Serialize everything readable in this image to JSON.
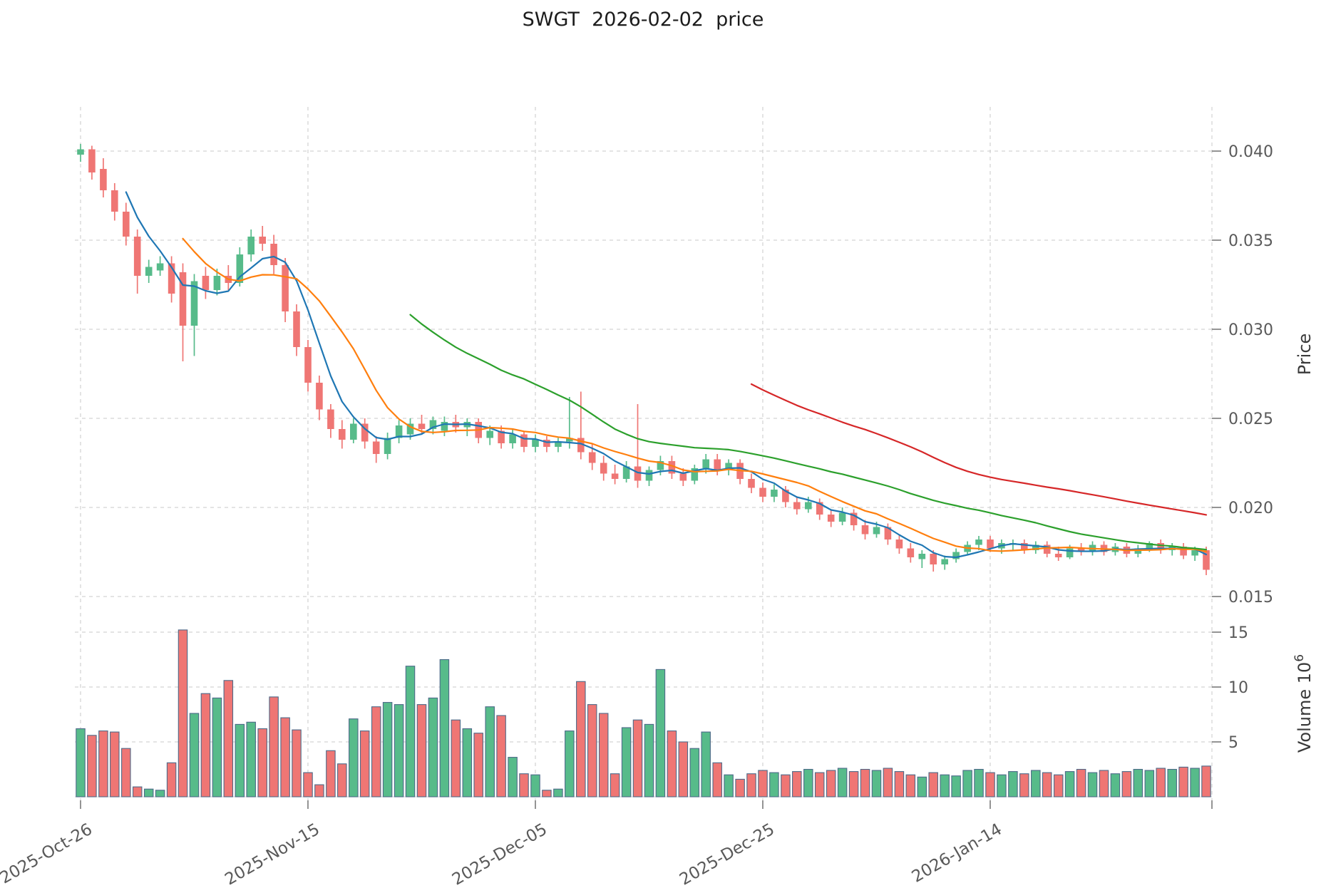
{
  "title": "SWGT  2026-02-02  price",
  "chart_data": {
    "type": "candlestick",
    "title": "SWGT  2026-02-02  price",
    "ylabel_price": "Price",
    "ylabel_volume_text": "Volume  10",
    "ylabel_volume_exp": "6",
    "legend_position": "none",
    "grid": true,
    "price_axis": {
      "min": 0.015,
      "max": 0.0425,
      "tick_values": [
        0.015,
        0.02,
        0.025,
        0.03,
        0.035,
        0.04
      ],
      "tick_labels": [
        "0.015",
        "0.020",
        "0.025",
        "0.030",
        "0.035",
        "0.040"
      ]
    },
    "volume_axis": {
      "unit_millions": true,
      "tick_values": [
        5,
        10,
        15
      ],
      "tick_labels": [
        "5",
        "10",
        "15"
      ]
    },
    "x_ticks": [
      {
        "index": 0,
        "label": "2025-Oct-26"
      },
      {
        "index": 20,
        "label": "2025-Nov-15"
      },
      {
        "index": 40,
        "label": "2025-Dec-05"
      },
      {
        "index": 60,
        "label": "2025-Dec-25"
      },
      {
        "index": 80,
        "label": "2026-Jan-14"
      },
      {
        "index": 100,
        "label": ""
      }
    ],
    "moving_averages": [
      {
        "window": 5,
        "color": "#1f77b4"
      },
      {
        "window": 10,
        "color": "#ff7f0e"
      },
      {
        "window": 30,
        "color": "#2ca02c"
      },
      {
        "window": 60,
        "color": "#d62728"
      }
    ],
    "colors": {
      "up": "#57bb8a",
      "down": "#ef7674",
      "volume_edge": "#4d6a89",
      "grid": "#c9c9c9",
      "tick_text": "#595959",
      "title_text": "#1c1c1c"
    },
    "candles_format": [
      "open",
      "high",
      "low",
      "close",
      "volume_millions"
    ],
    "candles": [
      [
        0.0398,
        0.0404,
        0.0394,
        0.0401,
        6.2
      ],
      [
        0.0401,
        0.0403,
        0.0384,
        0.0388,
        5.6
      ],
      [
        0.039,
        0.0396,
        0.0374,
        0.0378,
        6.0
      ],
      [
        0.0378,
        0.0382,
        0.0361,
        0.0366,
        5.9
      ],
      [
        0.0366,
        0.0371,
        0.0347,
        0.0352,
        4.4
      ],
      [
        0.0352,
        0.0356,
        0.032,
        0.033,
        0.9
      ],
      [
        0.033,
        0.0339,
        0.0326,
        0.0335,
        0.7
      ],
      [
        0.0333,
        0.0341,
        0.033,
        0.0337,
        0.6
      ],
      [
        0.0337,
        0.0341,
        0.0315,
        0.032,
        3.1
      ],
      [
        0.0332,
        0.0337,
        0.0282,
        0.0302,
        15.2
      ],
      [
        0.0302,
        0.0331,
        0.0285,
        0.0327,
        7.6
      ],
      [
        0.033,
        0.0335,
        0.0317,
        0.0322,
        9.4
      ],
      [
        0.0322,
        0.0334,
        0.0319,
        0.033,
        9.0
      ],
      [
        0.033,
        0.0336,
        0.0322,
        0.0326,
        10.6
      ],
      [
        0.0326,
        0.0346,
        0.0324,
        0.0342,
        6.6
      ],
      [
        0.0342,
        0.0356,
        0.0338,
        0.0352,
        6.8
      ],
      [
        0.0352,
        0.0358,
        0.0344,
        0.0348,
        6.2
      ],
      [
        0.0348,
        0.0353,
        0.0331,
        0.0336,
        9.1
      ],
      [
        0.0336,
        0.034,
        0.0304,
        0.031,
        7.2
      ],
      [
        0.031,
        0.0314,
        0.0285,
        0.029,
        6.1
      ],
      [
        0.029,
        0.0294,
        0.0265,
        0.027,
        2.2
      ],
      [
        0.027,
        0.0274,
        0.0249,
        0.0255,
        1.1
      ],
      [
        0.0255,
        0.0258,
        0.0239,
        0.0244,
        4.2
      ],
      [
        0.0244,
        0.0249,
        0.0233,
        0.0238,
        3.0
      ],
      [
        0.0238,
        0.025,
        0.0236,
        0.0247,
        7.1
      ],
      [
        0.0247,
        0.025,
        0.0233,
        0.0237,
        6.0
      ],
      [
        0.0237,
        0.024,
        0.0225,
        0.023,
        8.2
      ],
      [
        0.023,
        0.0242,
        0.0227,
        0.0239,
        8.6
      ],
      [
        0.0239,
        0.0249,
        0.0236,
        0.0246,
        8.4
      ],
      [
        0.0241,
        0.025,
        0.0238,
        0.0247,
        11.9
      ],
      [
        0.0247,
        0.0252,
        0.0241,
        0.0244,
        8.4
      ],
      [
        0.0244,
        0.0251,
        0.0241,
        0.0249,
        9.0
      ],
      [
        0.0243,
        0.0251,
        0.024,
        0.0248,
        12.5
      ],
      [
        0.0248,
        0.0252,
        0.0242,
        0.0245,
        7.0
      ],
      [
        0.0245,
        0.025,
        0.024,
        0.0248,
        6.2
      ],
      [
        0.0248,
        0.025,
        0.0236,
        0.0239,
        5.8
      ],
      [
        0.0239,
        0.0246,
        0.0235,
        0.0243,
        8.2
      ],
      [
        0.0243,
        0.0246,
        0.0233,
        0.0236,
        7.4
      ],
      [
        0.0236,
        0.0244,
        0.0233,
        0.0241,
        3.6
      ],
      [
        0.0241,
        0.0243,
        0.0231,
        0.0234,
        2.1
      ],
      [
        0.0234,
        0.0241,
        0.0231,
        0.0238,
        2.0
      ],
      [
        0.0238,
        0.024,
        0.0231,
        0.0234,
        0.6
      ],
      [
        0.0234,
        0.0239,
        0.0231,
        0.0237,
        0.7
      ],
      [
        0.0237,
        0.0262,
        0.0233,
        0.0239,
        6.0
      ],
      [
        0.0239,
        0.0265,
        0.0227,
        0.0231,
        10.5
      ],
      [
        0.0231,
        0.0236,
        0.0221,
        0.0225,
        8.4
      ],
      [
        0.0225,
        0.0229,
        0.0215,
        0.0219,
        7.6
      ],
      [
        0.0219,
        0.0224,
        0.0213,
        0.0216,
        2.1
      ],
      [
        0.0216,
        0.0226,
        0.0214,
        0.0223,
        6.3
      ],
      [
        0.0223,
        0.0258,
        0.0211,
        0.0215,
        7.0
      ],
      [
        0.0215,
        0.0223,
        0.0212,
        0.0221,
        6.6
      ],
      [
        0.0221,
        0.0229,
        0.0218,
        0.0226,
        11.6
      ],
      [
        0.0226,
        0.0229,
        0.0216,
        0.0219,
        6.0
      ],
      [
        0.0219,
        0.0222,
        0.0212,
        0.0215,
        5.0
      ],
      [
        0.0215,
        0.0224,
        0.0213,
        0.0222,
        4.4
      ],
      [
        0.0222,
        0.023,
        0.0219,
        0.0227,
        5.9
      ],
      [
        0.0227,
        0.023,
        0.0218,
        0.0221,
        3.1
      ],
      [
        0.0221,
        0.0227,
        0.0218,
        0.0225,
        2.0
      ],
      [
        0.0225,
        0.0227,
        0.0213,
        0.0216,
        1.6
      ],
      [
        0.0216,
        0.0219,
        0.0208,
        0.0211,
        2.1
      ],
      [
        0.0211,
        0.0214,
        0.0203,
        0.0206,
        2.4
      ],
      [
        0.0206,
        0.0213,
        0.0203,
        0.021,
        2.2
      ],
      [
        0.021,
        0.0212,
        0.02,
        0.0203,
        2.0
      ],
      [
        0.0203,
        0.0206,
        0.0196,
        0.0199,
        2.3
      ],
      [
        0.0199,
        0.0206,
        0.0197,
        0.0203,
        2.5
      ],
      [
        0.0203,
        0.0205,
        0.0193,
        0.0196,
        2.2
      ],
      [
        0.0196,
        0.0199,
        0.0189,
        0.0192,
        2.4
      ],
      [
        0.0192,
        0.02,
        0.019,
        0.0197,
        2.6
      ],
      [
        0.0197,
        0.0199,
        0.0187,
        0.019,
        2.3
      ],
      [
        0.019,
        0.0193,
        0.0182,
        0.0185,
        2.5
      ],
      [
        0.0185,
        0.0192,
        0.0183,
        0.0189,
        2.4
      ],
      [
        0.0189,
        0.0191,
        0.0179,
        0.0182,
        2.6
      ],
      [
        0.0182,
        0.0185,
        0.0174,
        0.0177,
        2.3
      ],
      [
        0.0177,
        0.018,
        0.0169,
        0.0172,
        2.0
      ],
      [
        0.0171,
        0.0176,
        0.0166,
        0.0174,
        1.8
      ],
      [
        0.0174,
        0.0176,
        0.0164,
        0.0168,
        2.2
      ],
      [
        0.0168,
        0.0173,
        0.0165,
        0.0171,
        2.0
      ],
      [
        0.0171,
        0.0177,
        0.0169,
        0.0175,
        1.9
      ],
      [
        0.0175,
        0.0181,
        0.0173,
        0.0179,
        2.4
      ],
      [
        0.0179,
        0.0184,
        0.0176,
        0.0182,
        2.5
      ],
      [
        0.0182,
        0.0184,
        0.0175,
        0.0177,
        2.2
      ],
      [
        0.0177,
        0.0182,
        0.0174,
        0.018,
        2.0
      ],
      [
        0.0179,
        0.0182,
        0.0176,
        0.018,
        2.3
      ],
      [
        0.018,
        0.0182,
        0.0174,
        0.0176,
        2.1
      ],
      [
        0.0176,
        0.0181,
        0.0174,
        0.0179,
        2.4
      ],
      [
        0.0179,
        0.0181,
        0.0172,
        0.0174,
        2.2
      ],
      [
        0.0174,
        0.0178,
        0.017,
        0.0172,
        2.0
      ],
      [
        0.0172,
        0.0179,
        0.0171,
        0.0177,
        2.3
      ],
      [
        0.0177,
        0.018,
        0.0173,
        0.0175,
        2.5
      ],
      [
        0.0175,
        0.0181,
        0.0173,
        0.0179,
        2.2
      ],
      [
        0.0179,
        0.0181,
        0.0173,
        0.0175,
        2.4
      ],
      [
        0.0175,
        0.018,
        0.0173,
        0.0178,
        2.1
      ],
      [
        0.0178,
        0.018,
        0.0172,
        0.0174,
        2.3
      ],
      [
        0.0174,
        0.0179,
        0.0172,
        0.0177,
        2.5
      ],
      [
        0.0177,
        0.0181,
        0.0175,
        0.018,
        2.4
      ],
      [
        0.018,
        0.0182,
        0.0174,
        0.0176,
        2.6
      ],
      [
        0.0176,
        0.018,
        0.0173,
        0.0178,
        2.5
      ],
      [
        0.0178,
        0.018,
        0.0171,
        0.0173,
        2.7
      ],
      [
        0.0173,
        0.0178,
        0.017,
        0.0176,
        2.6
      ],
      [
        0.0176,
        0.0178,
        0.0162,
        0.0165,
        2.8
      ]
    ]
  }
}
